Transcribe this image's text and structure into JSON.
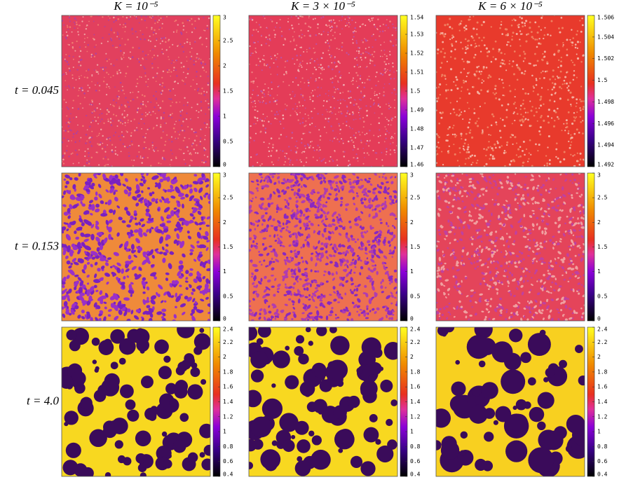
{
  "columns": [
    "K = 10⁻⁵",
    "K = 3 × 10⁻⁵",
    "K = 6 × 10⁻⁵"
  ],
  "rows": [
    {
      "label": "t = 0.045",
      "panels": [
        {
          "colorbar_ticks": [
            0,
            0.5,
            1,
            1.5,
            2,
            2.5,
            3
          ]
        },
        {
          "colorbar_ticks": [
            1.46,
            1.47,
            1.48,
            1.49,
            1.5,
            1.51,
            1.52,
            1.53,
            1.54
          ]
        },
        {
          "colorbar_ticks": [
            1.492,
            1.494,
            1.496,
            1.498,
            1.5,
            1.502,
            1.504,
            1.506
          ]
        }
      ]
    },
    {
      "label": "t = 0.153",
      "panels": [
        {
          "colorbar_ticks": [
            0,
            0.5,
            1,
            1.5,
            2,
            2.5,
            3
          ]
        },
        {
          "colorbar_ticks": [
            0,
            0.5,
            1,
            1.5,
            2,
            2.5,
            3
          ]
        },
        {
          "colorbar_ticks": [
            0,
            0.5,
            1,
            1.5,
            2,
            2.5,
            3
          ]
        }
      ]
    },
    {
      "label": "t = 4.0",
      "panels": [
        {
          "colorbar_ticks": [
            0.4,
            0.6,
            0.8,
            1,
            1.2,
            1.4,
            1.6,
            1.8,
            2,
            2.2,
            2.4
          ]
        },
        {
          "colorbar_ticks": [
            0.4,
            0.6,
            0.8,
            1,
            1.2,
            1.4,
            1.6,
            1.8,
            2,
            2.2,
            2.4
          ]
        },
        {
          "colorbar_ticks": [
            0.4,
            0.6,
            0.8,
            1,
            1.2,
            1.4,
            1.6,
            1.8,
            2,
            2.2,
            2.4
          ]
        }
      ]
    }
  ]
}
